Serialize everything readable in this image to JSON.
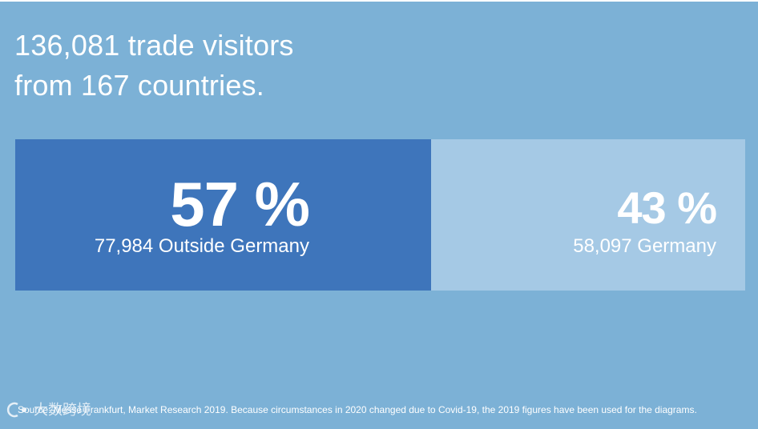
{
  "headline": {
    "line1": "136,081 trade visitors",
    "line2": "from 167 countries."
  },
  "chart_data": {
    "type": "bar",
    "orientation": "horizontal-stacked",
    "categories": [
      "Outside Germany",
      "Germany"
    ],
    "values": [
      57,
      43
    ],
    "counts": [
      77984,
      58097
    ],
    "percent_labels": [
      "57 %",
      "43 %"
    ],
    "sub_labels": [
      "77,984 Outside Germany",
      "58,097 Germany"
    ],
    "colors": [
      "#3e75bb",
      "#a5c9e5"
    ],
    "total": 136081
  },
  "source": "Source: Messe Frankfurt, Market Research 2019. Because circumstances in 2020 changed due to Covid-19, the 2019 figures have been used for the diagrams.",
  "watermark": {
    "text": "大数跨境"
  },
  "colors": {
    "background": "#7cb1d6",
    "text": "#ffffff"
  }
}
